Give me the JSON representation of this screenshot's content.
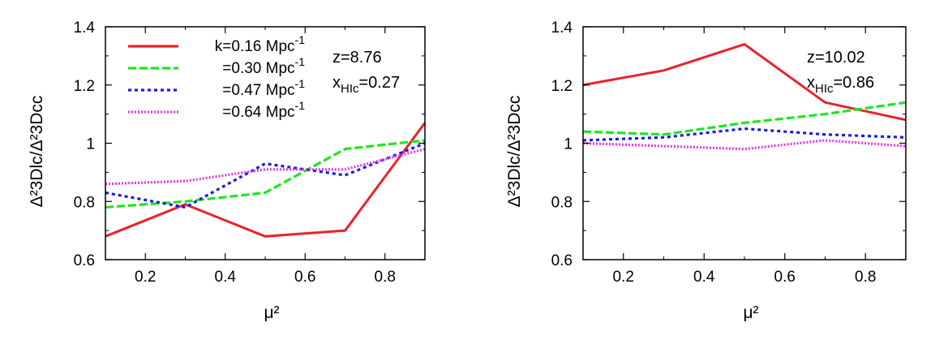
{
  "chart_data": [
    {
      "type": "line",
      "xlabel": "μ²",
      "ylabel": "Δ²3Dlc/Δ²3Dcc",
      "xlim": [
        0.1,
        0.9
      ],
      "ylim": [
        0.6,
        1.4
      ],
      "xticks": [
        0.2,
        0.4,
        0.6,
        0.8
      ],
      "yticks": [
        0.6,
        0.8,
        1.0,
        1.2,
        1.4
      ],
      "xtick_labels": [
        "0.2",
        "0.4",
        "0.6",
        "0.8"
      ],
      "ytick_labels": [
        "0.6",
        "0.8",
        "1",
        "1.2",
        "1.4"
      ],
      "annotations": {
        "z": "z=8.76",
        "xh": "x",
        "xh_sub": "HIc",
        "xh_val": "=0.27"
      },
      "legend": {
        "position": "top-left",
        "entries": [
          {
            "prefix": "k=0.16 Mpc",
            "sup": "-1"
          },
          {
            "prefix": "=0.30 Mpc",
            "sup": "-1"
          },
          {
            "prefix": "=0.47 Mpc",
            "sup": "-1"
          },
          {
            "prefix": "=0.64 Mpc",
            "sup": "-1"
          }
        ]
      },
      "series": [
        {
          "name": "k=0.16 Mpc-1",
          "color": "#e8232a",
          "style": "solid",
          "x": [
            0.1,
            0.3,
            0.5,
            0.7,
            0.9
          ],
          "values": [
            0.68,
            0.79,
            0.68,
            0.7,
            1.07
          ]
        },
        {
          "name": "=0.30 Mpc-1",
          "color": "#1ee61e",
          "style": "dashed",
          "x": [
            0.1,
            0.3,
            0.5,
            0.7,
            0.9
          ],
          "values": [
            0.78,
            0.8,
            0.83,
            0.98,
            1.01
          ]
        },
        {
          "name": "=0.47 Mpc-1",
          "color": "#1a1ae6",
          "style": "dotted",
          "x": [
            0.1,
            0.3,
            0.5,
            0.7,
            0.9
          ],
          "values": [
            0.83,
            0.78,
            0.93,
            0.89,
            1.0
          ]
        },
        {
          "name": "=0.64 Mpc-1",
          "color": "#e838e8",
          "style": "dotted-fine",
          "x": [
            0.1,
            0.3,
            0.5,
            0.7,
            0.9
          ],
          "values": [
            0.86,
            0.87,
            0.91,
            0.91,
            0.98
          ]
        }
      ]
    },
    {
      "type": "line",
      "xlabel": "μ²",
      "ylabel": "Δ²3Dlc/Δ²3Dcc",
      "xlim": [
        0.1,
        0.9
      ],
      "ylim": [
        0.6,
        1.4
      ],
      "xticks": [
        0.2,
        0.4,
        0.6,
        0.8
      ],
      "yticks": [
        0.6,
        0.8,
        1.0,
        1.2,
        1.4
      ],
      "xtick_labels": [
        "0.2",
        "0.4",
        "0.6",
        "0.8"
      ],
      "ytick_labels": [
        "0.6",
        "0.8",
        "1",
        "1.2",
        "1.4"
      ],
      "annotations": {
        "z": "z=10.02",
        "xh": "x",
        "xh_sub": "HIc",
        "xh_val": "=0.86"
      },
      "series": [
        {
          "name": "k=0.16 Mpc-1",
          "color": "#e8232a",
          "style": "solid",
          "x": [
            0.1,
            0.3,
            0.5,
            0.7,
            0.9
          ],
          "values": [
            1.2,
            1.25,
            1.34,
            1.14,
            1.08
          ]
        },
        {
          "name": "=0.30 Mpc-1",
          "color": "#1ee61e",
          "style": "dashed",
          "x": [
            0.1,
            0.3,
            0.5,
            0.7,
            0.9
          ],
          "values": [
            1.04,
            1.03,
            1.07,
            1.1,
            1.14
          ]
        },
        {
          "name": "=0.47 Mpc-1",
          "color": "#1a1ae6",
          "style": "dotted",
          "x": [
            0.1,
            0.3,
            0.5,
            0.7,
            0.9
          ],
          "values": [
            1.01,
            1.02,
            1.05,
            1.03,
            1.02
          ]
        },
        {
          "name": "=0.64 Mpc-1",
          "color": "#e838e8",
          "style": "dotted-fine",
          "x": [
            0.1,
            0.3,
            0.5,
            0.7,
            0.9
          ],
          "values": [
            1.0,
            0.99,
            0.98,
            1.01,
            0.99
          ]
        }
      ]
    }
  ]
}
